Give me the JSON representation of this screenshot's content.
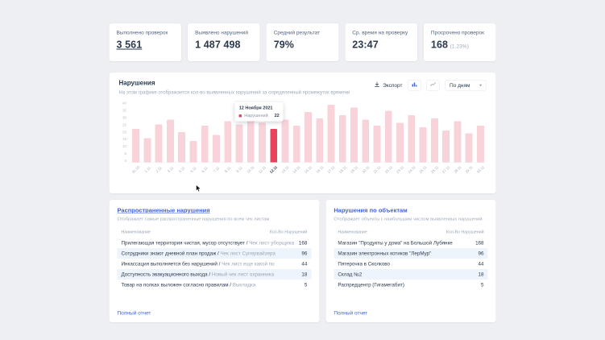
{
  "colors": {
    "accent_blue": "#3f62d7",
    "bar": "#f9d3da",
    "bar_highlight": "#e8435a",
    "row_alt": "#eef4fb"
  },
  "icons": {
    "export": "download-icon",
    "chart_type_bar": "bar-chart-icon",
    "chart_type_line": "line-chart-icon",
    "period": "chevron-down-icon"
  },
  "stats": [
    {
      "label": "Выполнено проверок",
      "value": "3 561"
    },
    {
      "label": "Выявлено нарушений",
      "value": "1 487 498"
    },
    {
      "label": "Средний результат",
      "value": "79%"
    },
    {
      "label": "Ср. время на проверку",
      "value": "23:47"
    },
    {
      "label": "Просрочено проверок",
      "value": "168",
      "extra": "(1,23%)"
    }
  ],
  "chart": {
    "title": "Нарушения",
    "subtitle": "На этом графике отображается кол-во выявленных нарушений за определенный промежуток времени",
    "export_label": "Экспорт",
    "period_selector": "По дням",
    "tooltip": {
      "date": "12 Ноября 2021",
      "series": "Нарушений",
      "value": "22"
    },
    "chart_data": {
      "type": "bar",
      "categories": [
        "31.10",
        "1.11",
        "2.11",
        "3.11",
        "4.11",
        "5.11",
        "6.11",
        "7.11",
        "8.11",
        "9.11",
        "10.11",
        "11.11",
        "12.11",
        "13.11",
        "14.11",
        "15.11",
        "16.11",
        "17.11",
        "18.11",
        "19.11",
        "20.11",
        "21.11",
        "22.11",
        "23.11",
        "24.11",
        "25.11",
        "26.11",
        "27.11",
        "28.11",
        "29.11",
        "30.11"
      ],
      "values": [
        22,
        16,
        25,
        28,
        20,
        14,
        24,
        18,
        27,
        25,
        30,
        26,
        22,
        28,
        24,
        33,
        29,
        38,
        31,
        36,
        28,
        24,
        34,
        26,
        31,
        23,
        29,
        21,
        27,
        19,
        24
      ],
      "highlight_index": 12,
      "title": "Нарушения",
      "xlabel": "",
      "ylabel": "",
      "ylim": [
        0,
        40
      ],
      "yticks": [
        0,
        5,
        10,
        15,
        20,
        25,
        30,
        35,
        40
      ],
      "grid": false,
      "legend": false
    }
  },
  "common_violations": {
    "title": "Распространенные нарушения",
    "subtitle": "Отображает самые распространенные нарушения по всем чек листам",
    "col_name": "Наименование",
    "col_count": "Кол-Во Нарушений",
    "rows": [
      {
        "name": "Прилегающая территория чистая, мусор отсутствует / ",
        "checklist": "Чек лист уборщика",
        "count": "168"
      },
      {
        "name": "Сотрудники знают дневной план продаж / ",
        "checklist": "Чек лист Супервайзера",
        "count": "96"
      },
      {
        "name": "Инкассация выполняется без нарушений / ",
        "checklist": "Чек лист еще какой по",
        "count": "44"
      },
      {
        "name": "Доступность эвакуационного выхода / ",
        "checklist": "Новый чек лист охранника",
        "count": "18"
      },
      {
        "name": "Товар на полках выложен согласно правилам / ",
        "checklist": "Выкладка",
        "count": "5"
      }
    ],
    "footer_link": "Полный отчет"
  },
  "object_violations": {
    "title": "Нарушения по объектам",
    "subtitle": "Отображает объекты с наибольшим числом выявленных нарушений",
    "col_name": "Наименование",
    "col_count": "Кол-Во Нарушений",
    "rows": [
      {
        "name": "Магазин \"Продукты у дома\" на Большой Лубянке",
        "count": "168"
      },
      {
        "name": "Магазин электронных котиков \"ЛерМур\"",
        "count": "96"
      },
      {
        "name": "Пятерочка в Сколково",
        "count": "44"
      },
      {
        "name": "Склад №2",
        "count": "18"
      },
      {
        "name": "Распредцентр (Гигамегабит)",
        "count": "5"
      }
    ],
    "footer_link": "Полный отчет"
  }
}
